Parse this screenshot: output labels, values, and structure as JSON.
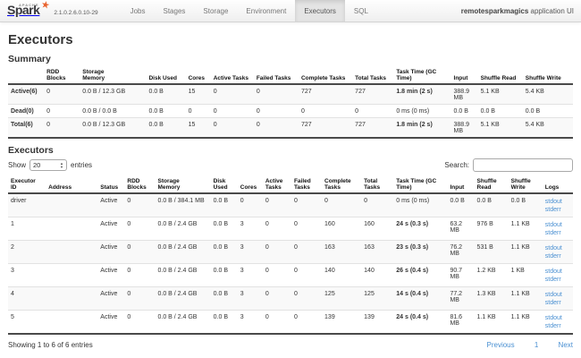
{
  "navbar": {
    "logo": {
      "apache": "APACHE",
      "brand": "Spark",
      "star": "★",
      "version": "2.1.0.2.6.0.10-29"
    },
    "items": [
      {
        "label": "Jobs",
        "active": false
      },
      {
        "label": "Stages",
        "active": false
      },
      {
        "label": "Storage",
        "active": false
      },
      {
        "label": "Environment",
        "active": false
      },
      {
        "label": "Executors",
        "active": true
      },
      {
        "label": "SQL",
        "active": false
      }
    ],
    "app_name": "remotesparkmagics",
    "app_name_suffix": " application UI"
  },
  "page_title": "Executors",
  "summary": {
    "heading": "Summary",
    "columns": [
      "",
      "RDD\nBlocks",
      "Storage\nMemory",
      "Disk Used",
      "Cores",
      "Active Tasks",
      "Failed Tasks",
      "Complete Tasks",
      "Total Tasks",
      "Task Time (GC\nTime)",
      "Input",
      "Shuffle Read",
      "Shuffle Write"
    ],
    "rows": [
      {
        "label": "Active(6)",
        "cells": [
          "0",
          "0.0 B / 12.3 GB",
          "0.0 B",
          "15",
          "0",
          "0",
          "727",
          "727",
          "1.8 min (2 s)",
          "388.9 MB",
          "5.1 KB",
          "5.4 KB"
        ]
      },
      {
        "label": "Dead(0)",
        "cells": [
          "0",
          "0.0 B / 0.0 B",
          "0.0 B",
          "0",
          "0",
          "0",
          "0",
          "0",
          "0 ms (0 ms)",
          "0.0 B",
          "0.0 B",
          "0.0 B"
        ]
      },
      {
        "label": "Total(6)",
        "cells": [
          "0",
          "0.0 B / 12.3 GB",
          "0.0 B",
          "15",
          "0",
          "0",
          "727",
          "727",
          "1.8 min (2 s)",
          "388.9 MB",
          "5.1 KB",
          "5.4 KB"
        ]
      }
    ]
  },
  "executors_table": {
    "heading": "Executors",
    "show_label": "Show",
    "page_size": "20",
    "entries_label": "entries",
    "search_label": "Search:",
    "columns": [
      "Executor\nID",
      "Address",
      "Status",
      "RDD\nBlocks",
      "Storage\nMemory",
      "Disk\nUsed",
      "Cores",
      "Active\nTasks",
      "Failed\nTasks",
      "Complete\nTasks",
      "Total\nTasks",
      "Task Time (GC\nTime)",
      "Input",
      "Shuffle\nRead",
      "Shuffle\nWrite",
      "Logs"
    ],
    "rows": [
      {
        "cells": [
          "driver",
          "",
          "Active",
          "0",
          "0.0 B / 384.1 MB",
          "0.0 B",
          "0",
          "0",
          "0",
          "0",
          "0",
          "0 ms (0 ms)",
          "0.0 B",
          "0.0 B",
          "0.0 B"
        ],
        "logs": [
          "stdout",
          "stderr"
        ]
      },
      {
        "cells": [
          "1",
          "",
          "Active",
          "0",
          "0.0 B / 2.4 GB",
          "0.0 B",
          "3",
          "0",
          "0",
          "160",
          "160",
          "24 s (0.3 s)",
          "63.2 MB",
          "976 B",
          "1.1 KB"
        ],
        "logs": [
          "stdout",
          "stderr"
        ]
      },
      {
        "cells": [
          "2",
          "",
          "Active",
          "0",
          "0.0 B / 2.4 GB",
          "0.0 B",
          "3",
          "0",
          "0",
          "163",
          "163",
          "23 s (0.3 s)",
          "76.2 MB",
          "531 B",
          "1.1 KB"
        ],
        "logs": [
          "stdout",
          "stderr"
        ]
      },
      {
        "cells": [
          "3",
          "",
          "Active",
          "0",
          "0.0 B / 2.4 GB",
          "0.0 B",
          "3",
          "0",
          "0",
          "140",
          "140",
          "26 s (0.4 s)",
          "90.7 MB",
          "1.2 KB",
          "1 KB"
        ],
        "logs": [
          "stdout",
          "stderr"
        ]
      },
      {
        "cells": [
          "4",
          "",
          "Active",
          "0",
          "0.0 B / 2.4 GB",
          "0.0 B",
          "3",
          "0",
          "0",
          "125",
          "125",
          "14 s (0.4 s)",
          "77.2 MB",
          "1.3 KB",
          "1.1 KB"
        ],
        "logs": [
          "stdout",
          "stderr"
        ]
      },
      {
        "cells": [
          "5",
          "",
          "Active",
          "0",
          "0.0 B / 2.4 GB",
          "0.0 B",
          "3",
          "0",
          "0",
          "139",
          "139",
          "24 s (0.4 s)",
          "81.6 MB",
          "1.1 KB",
          "1.1 KB"
        ],
        "logs": [
          "stdout",
          "stderr"
        ]
      }
    ],
    "footer_status": "Showing 1 to 6 of 6 entries",
    "pagination": {
      "previous": "Previous",
      "current_page": "1",
      "next": "Next"
    }
  },
  "colors": {
    "link": "#4a90d2",
    "stripe": "#f9f9f9",
    "navbar_active_bg": "#e4e4e4",
    "star": "#e8622d"
  }
}
